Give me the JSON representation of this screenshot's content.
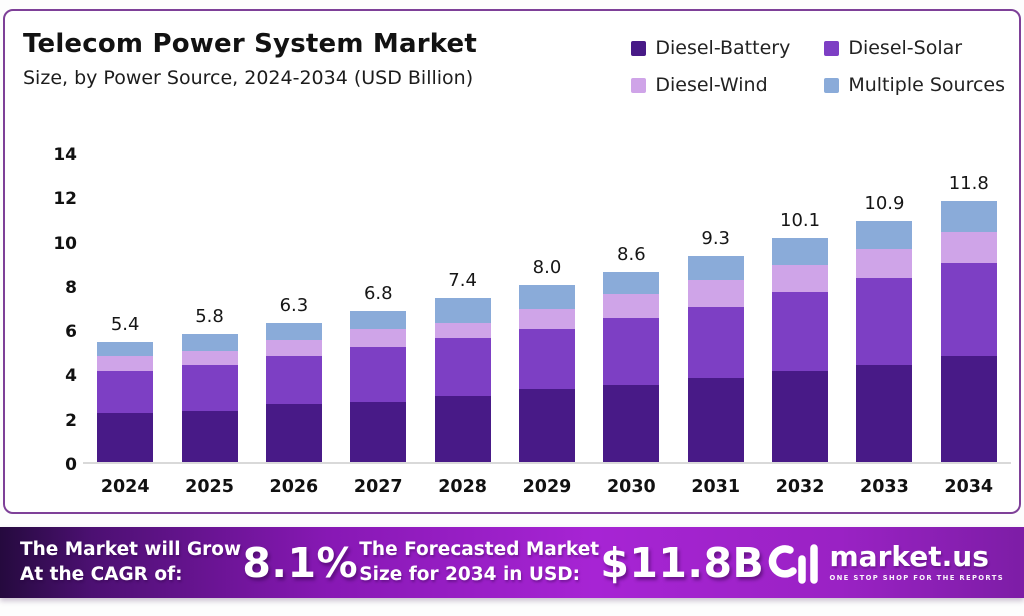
{
  "card": {
    "title": "Telecom Power System Market",
    "subtitle": "Size, by Power Source, 2024-2034 (USD Billion)"
  },
  "legend": [
    {
      "label": "Diesel-Battery",
      "color": "#481a87"
    },
    {
      "label": "Diesel-Solar",
      "color": "#7d3fc4"
    },
    {
      "label": "Diesel-Wind",
      "color": "#cfa4e8"
    },
    {
      "label": "Multiple Sources",
      "color": "#8aabd9"
    }
  ],
  "chart_data": {
    "type": "bar",
    "stacked": true,
    "title": "Telecom Power System Market Size, by Power Source, 2024-2034 (USD Billion)",
    "categories": [
      "2024",
      "2025",
      "2026",
      "2027",
      "2028",
      "2029",
      "2030",
      "2031",
      "2032",
      "2033",
      "2034"
    ],
    "series": [
      {
        "name": "Diesel-Battery",
        "color": "#481a87",
        "values": [
          2.2,
          2.3,
          2.6,
          2.7,
          3.0,
          3.3,
          3.5,
          3.8,
          4.1,
          4.4,
          4.8
        ]
      },
      {
        "name": "Diesel-Solar",
        "color": "#7d3fc4",
        "values": [
          1.9,
          2.1,
          2.2,
          2.5,
          2.6,
          2.7,
          3.0,
          3.2,
          3.6,
          3.9,
          4.2
        ]
      },
      {
        "name": "Diesel-Wind",
        "color": "#cfa4e8",
        "values": [
          0.7,
          0.6,
          0.7,
          0.8,
          0.7,
          0.9,
          1.1,
          1.2,
          1.2,
          1.3,
          1.4
        ]
      },
      {
        "name": "Multiple Sources",
        "color": "#8aabd9",
        "values": [
          0.6,
          0.8,
          0.8,
          0.8,
          1.1,
          1.1,
          1.0,
          1.1,
          1.2,
          1.3,
          1.4
        ]
      }
    ],
    "totals": [
      "5.4",
      "5.8",
      "6.3",
      "6.8",
      "7.4",
      "8.0",
      "8.6",
      "9.3",
      "10.1",
      "10.9",
      "11.8"
    ],
    "ylabel": "",
    "xlabel": "",
    "ylim": [
      0,
      14
    ],
    "yticks": [
      0,
      2,
      4,
      6,
      8,
      10,
      12,
      14
    ],
    "grid": false,
    "legend_position": "top-right"
  },
  "banner": {
    "cagr_label_line1": "The Market will Grow",
    "cagr_label_line2": "At the CAGR of:",
    "cagr_value": "8.1%",
    "forecast_label_line1": "The Forecasted Market",
    "forecast_label_line2": "Size for 2034 in USD:",
    "forecast_value": "$11.8B",
    "logo": {
      "text": "market.us",
      "tagline": "ONE STOP SHOP FOR THE REPORTS"
    }
  }
}
